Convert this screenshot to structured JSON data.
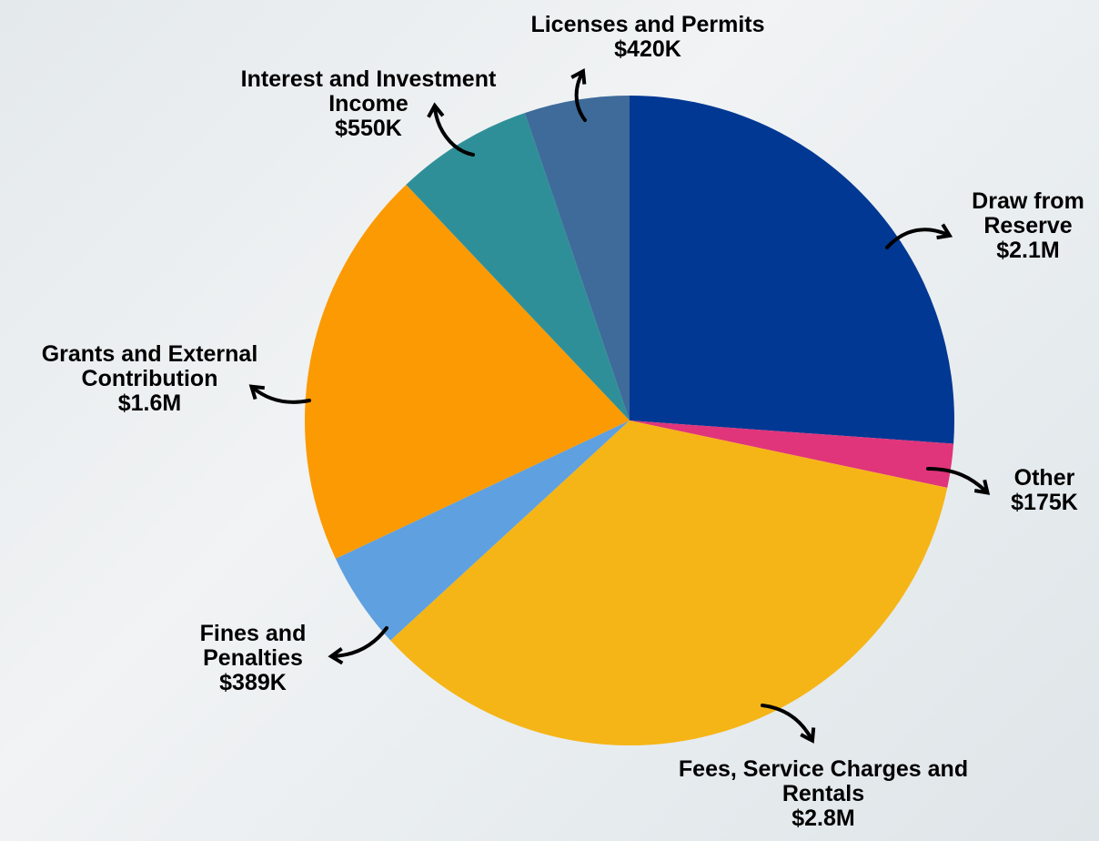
{
  "chart_data": {
    "type": "pie",
    "categories": [
      "Draw from Reserve",
      "Other",
      "Fees, Service Charges and Rentals",
      "Fines and Penalties",
      "Grants and External Contribution",
      "Interest and Investment Income",
      "Licenses and Permits"
    ],
    "values": [
      2100000,
      175000,
      2800000,
      389000,
      1600000,
      550000,
      420000
    ],
    "value_labels": [
      "$2.1M",
      "$175K",
      "$2.8M",
      "$389K",
      "$1.6M",
      "$550K",
      "$420K"
    ],
    "colors": [
      "#003893",
      "#e0357a",
      "#f5b517",
      "#5ea0e0",
      "#fb9a03",
      "#2f8f98",
      "#3e6b9a"
    ]
  }
}
